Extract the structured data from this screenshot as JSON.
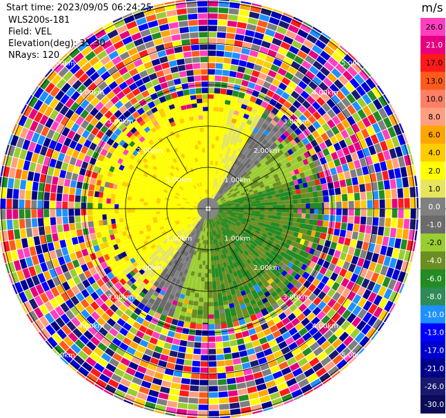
{
  "info": {
    "start_time": "Start time: 2023/09/05 06:24:25",
    "instrument": "WLS200s-181",
    "field": "Field: VEL",
    "elevation": "Elevation(deg): 35.30",
    "nrays": "NRays: 120"
  },
  "chart_data": {
    "type": "heatmap",
    "projection": "polar (PPI)",
    "field": "VEL",
    "nrays": 120,
    "range_rings_km": [
      1,
      2,
      3,
      4,
      5
    ],
    "range_labels": [
      "1.00km",
      "2.00km",
      "3.00km",
      "4.00km",
      "5.00km"
    ],
    "spokes_deg": [
      0,
      30,
      60,
      90,
      120,
      150,
      180,
      210,
      240,
      270,
      300,
      330
    ],
    "valid_data_radius_km": 2.8,
    "colorbar": {
      "unit": "m/s",
      "ticks": [
        "26.0",
        "21.0",
        "17.0",
        "13.0",
        "10.0",
        "8.0",
        "6.0",
        "4.0",
        "2.0",
        "1.0",
        "0.0",
        "-1.0",
        "-2.0",
        "-4.0",
        "-6.0",
        "-8.0",
        "-10.0",
        "-13.0",
        "-17.0",
        "-21.0",
        "-26.0",
        "-30.0"
      ],
      "colors": [
        "#ff3fbf",
        "#e6007f",
        "#ff1a1a",
        "#ff5a1a",
        "#ff7f66",
        "#ff9f80",
        "#ffa500",
        "#ffcc00",
        "#ffff00",
        "#e6e65c",
        "#808080",
        "#6b6b6b",
        "#9acd32",
        "#6b8e23",
        "#228b22",
        "#2e8b57",
        "#1e90ff",
        "#0000ff",
        "#0000cd",
        "#00008b",
        "#191970",
        "#0b0b5a"
      ]
    }
  }
}
